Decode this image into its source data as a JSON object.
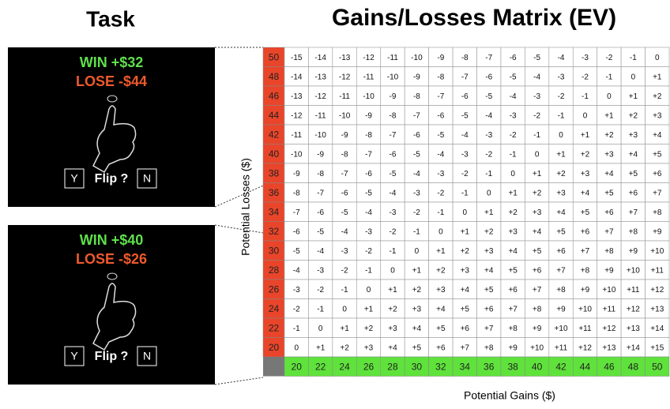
{
  "task": {
    "title": "Task",
    "panels": [
      {
        "win": "WIN +$32",
        "lose": "LOSE -$44",
        "yes": "Y",
        "flip": "Flip ?",
        "no": "N"
      },
      {
        "win": "WIN +$40",
        "lose": "LOSE -$26",
        "yes": "Y",
        "flip": "Flip ?",
        "no": "N"
      }
    ]
  },
  "matrix": {
    "title": "Gains/Losses Matrix (EV)",
    "y_label": "Potential Losses ($)",
    "x_label": "Potential Gains ($)",
    "losses": [
      "50",
      "48",
      "46",
      "44",
      "42",
      "40",
      "38",
      "36",
      "34",
      "32",
      "30",
      "28",
      "26",
      "24",
      "22",
      "20"
    ],
    "gains": [
      "20",
      "22",
      "24",
      "26",
      "28",
      "30",
      "32",
      "34",
      "36",
      "38",
      "40",
      "42",
      "44",
      "46",
      "48",
      "50"
    ],
    "rows": [
      [
        "-15",
        "-14",
        "-13",
        "-12",
        "-11",
        "-10",
        "-9",
        "-8",
        "-7",
        "-6",
        "-5",
        "-4",
        "-3",
        "-2",
        "-1",
        "0"
      ],
      [
        "-14",
        "-13",
        "-12",
        "-11",
        "-10",
        "-9",
        "-8",
        "-7",
        "-6",
        "-5",
        "-4",
        "-3",
        "-2",
        "-1",
        "0",
        "+1"
      ],
      [
        "-13",
        "-12",
        "-11",
        "-10",
        "-9",
        "-8",
        "-7",
        "-6",
        "-5",
        "-4",
        "-3",
        "-2",
        "-1",
        "0",
        "+1",
        "+2"
      ],
      [
        "-12",
        "-11",
        "-10",
        "-9",
        "-8",
        "-7",
        "-6",
        "-5",
        "-4",
        "-3",
        "-2",
        "-1",
        "0",
        "+1",
        "+2",
        "+3"
      ],
      [
        "-11",
        "-10",
        "-9",
        "-8",
        "-7",
        "-6",
        "-5",
        "-4",
        "-3",
        "-2",
        "-1",
        "0",
        "+1",
        "+2",
        "+3",
        "+4"
      ],
      [
        "-10",
        "-9",
        "-8",
        "-7",
        "-6",
        "-5",
        "-4",
        "-3",
        "-2",
        "-1",
        "0",
        "+1",
        "+2",
        "+3",
        "+4",
        "+5"
      ],
      [
        "-9",
        "-8",
        "-7",
        "-6",
        "-5",
        "-4",
        "-3",
        "-2",
        "-1",
        "0",
        "+1",
        "+2",
        "+3",
        "+4",
        "+5",
        "+6"
      ],
      [
        "-8",
        "-7",
        "-6",
        "-5",
        "-4",
        "-3",
        "-2",
        "-1",
        "0",
        "+1",
        "+2",
        "+3",
        "+4",
        "+5",
        "+6",
        "+7"
      ],
      [
        "-7",
        "-6",
        "-5",
        "-4",
        "-3",
        "-2",
        "-1",
        "0",
        "+1",
        "+2",
        "+3",
        "+4",
        "+5",
        "+6",
        "+7",
        "+8"
      ],
      [
        "-6",
        "-5",
        "-4",
        "-3",
        "-2",
        "-1",
        "0",
        "+1",
        "+2",
        "+3",
        "+4",
        "+5",
        "+6",
        "+7",
        "+8",
        "+9"
      ],
      [
        "-5",
        "-4",
        "-3",
        "-2",
        "-1",
        "0",
        "+1",
        "+2",
        "+3",
        "+4",
        "+5",
        "+6",
        "+7",
        "+8",
        "+9",
        "+10"
      ],
      [
        "-4",
        "-3",
        "-2",
        "-1",
        "0",
        "+1",
        "+2",
        "+3",
        "+4",
        "+5",
        "+6",
        "+7",
        "+8",
        "+9",
        "+10",
        "+11"
      ],
      [
        "-3",
        "-2",
        "-1",
        "0",
        "+1",
        "+2",
        "+3",
        "+4",
        "+5",
        "+6",
        "+7",
        "+8",
        "+9",
        "+10",
        "+11",
        "+12"
      ],
      [
        "-2",
        "-1",
        "0",
        "+1",
        "+2",
        "+3",
        "+4",
        "+5",
        "+6",
        "+7",
        "+8",
        "+9",
        "+10",
        "+11",
        "+12",
        "+13"
      ],
      [
        "-1",
        "0",
        "+1",
        "+2",
        "+3",
        "+4",
        "+5",
        "+6",
        "+7",
        "+8",
        "+9",
        "+10",
        "+11",
        "+12",
        "+13",
        "+14"
      ],
      [
        "0",
        "+1",
        "+2",
        "+3",
        "+4",
        "+5",
        "+6",
        "+7",
        "+8",
        "+9",
        "+10",
        "+11",
        "+12",
        "+13",
        "+14",
        "+15"
      ]
    ]
  }
}
